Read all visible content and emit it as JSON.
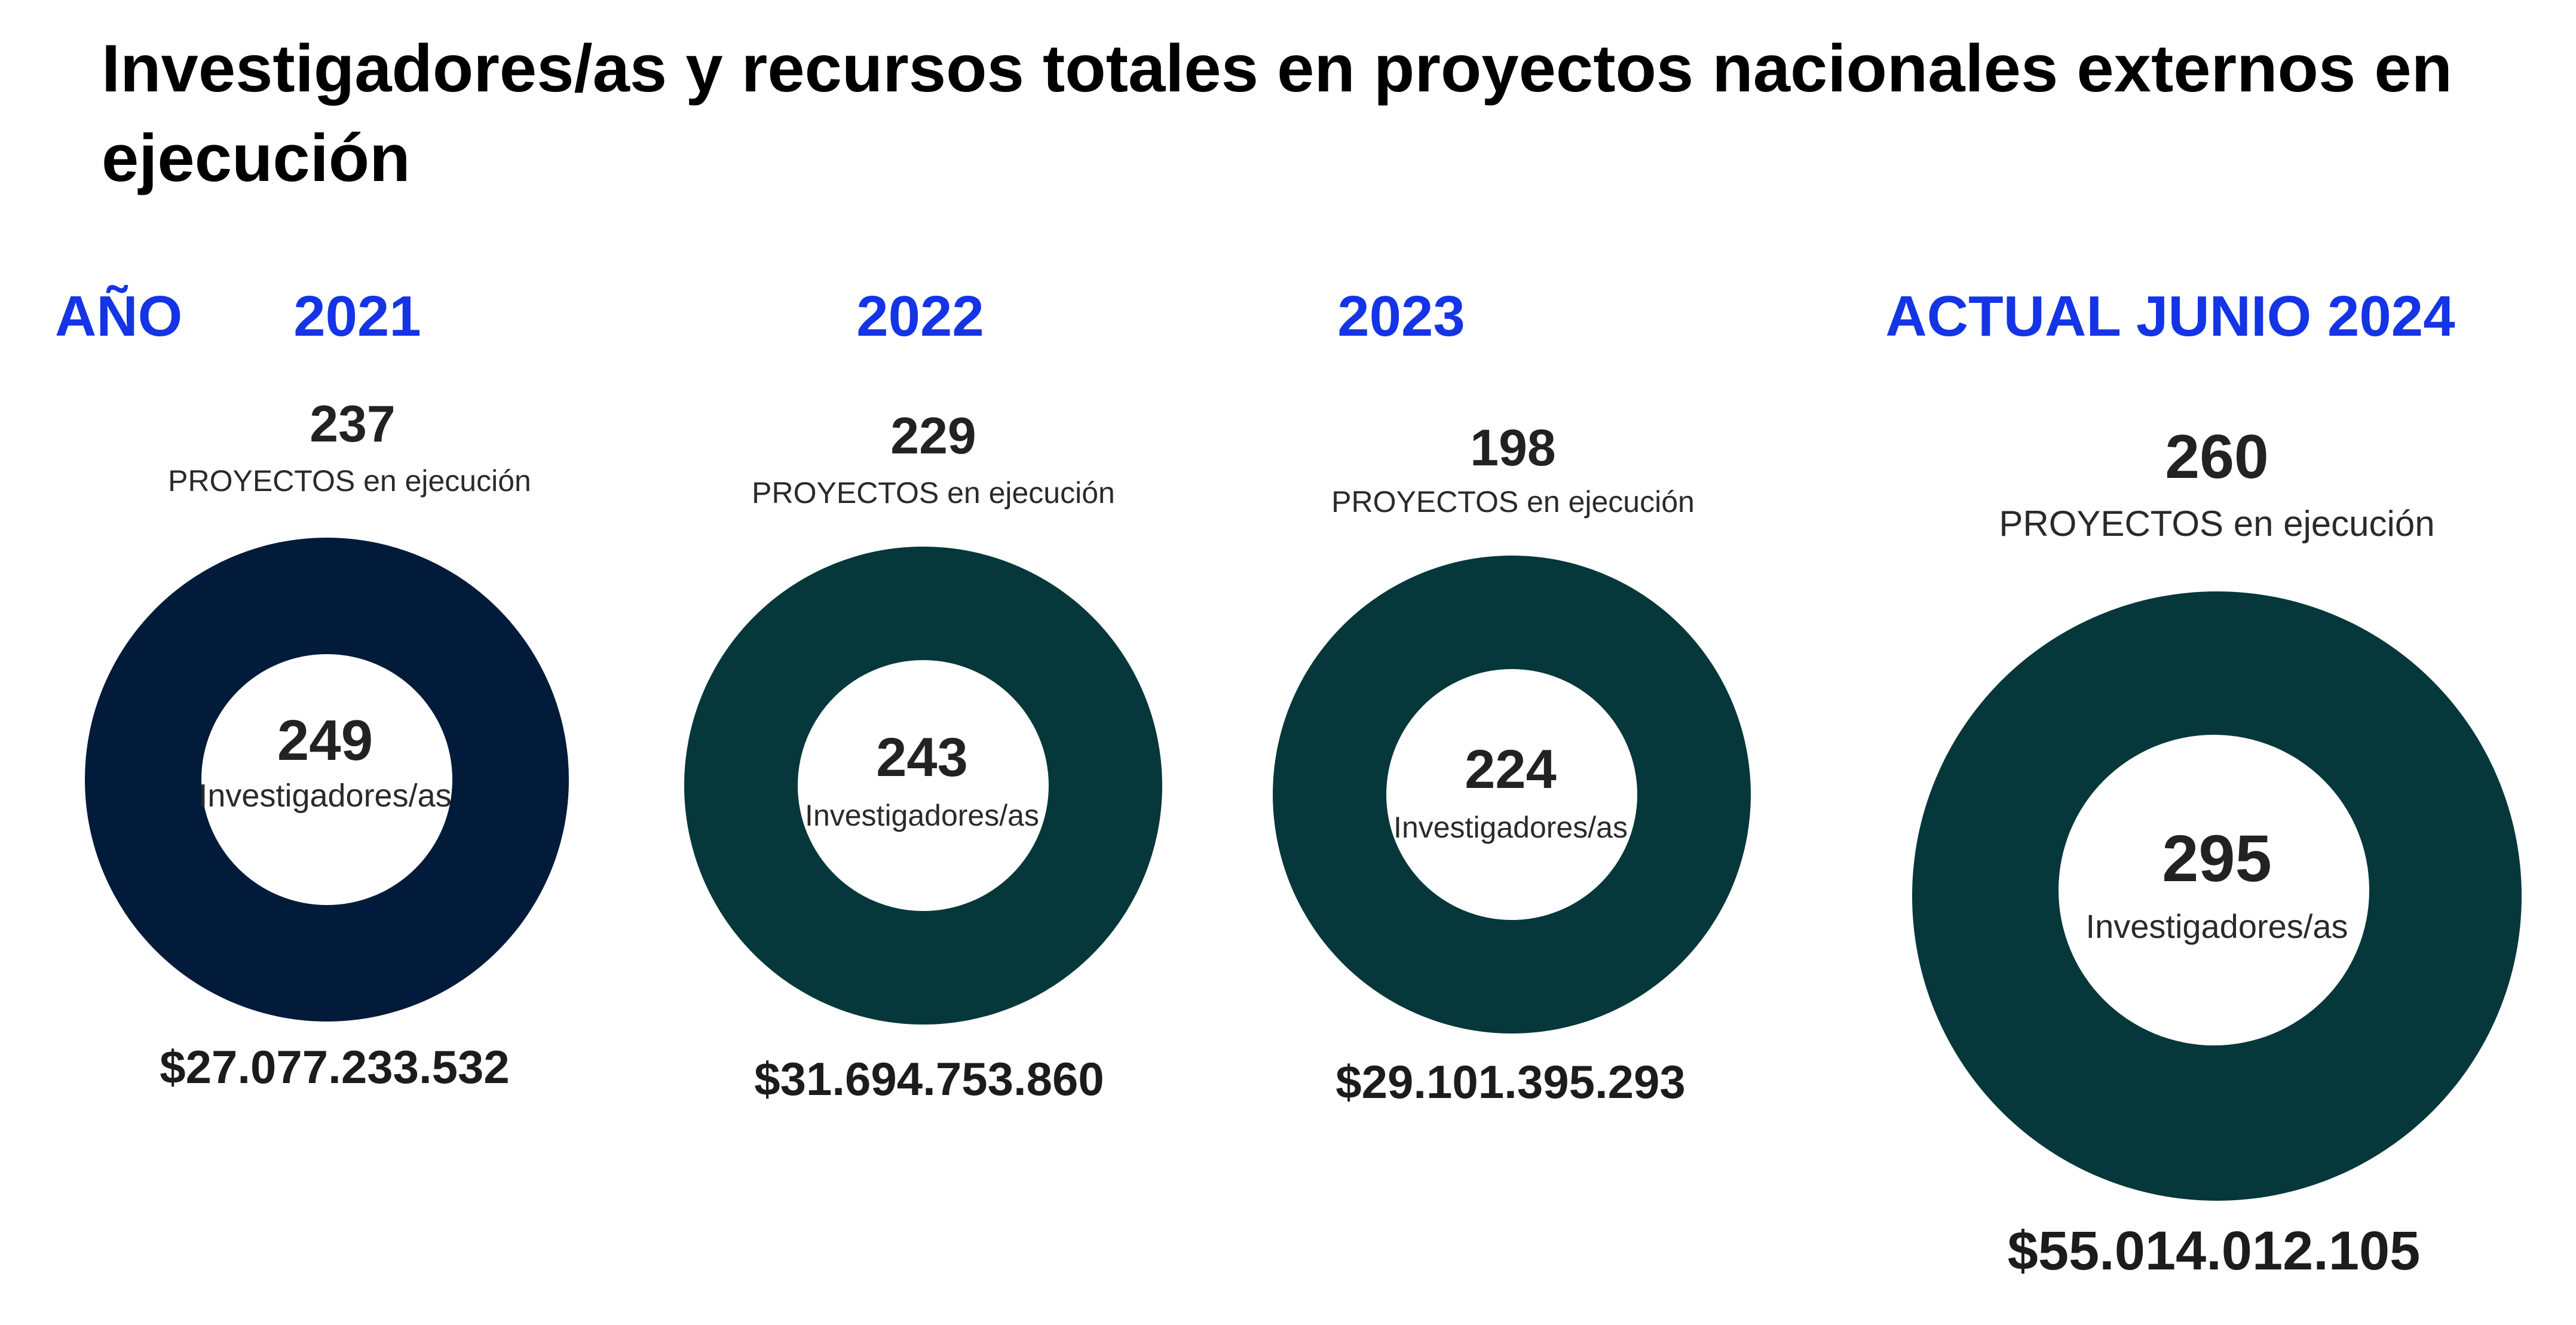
{
  "title": "Investigadores/as y recursos totales en proyectos nacionales externos en ejecución",
  "year_header_label": "AÑO",
  "ring_colors": {
    "2021": "#031b3a",
    "default": "#06373b"
  },
  "columns": [
    {
      "year": "2021",
      "projects": "237",
      "projects_label": "PROYECTOS en ejecución",
      "researchers": "249",
      "researchers_label": "Investigadores/as",
      "amount": "$27.077.233.532"
    },
    {
      "year": "2022",
      "projects": "229",
      "projects_label": "PROYECTOS en ejecución",
      "researchers": "243",
      "researchers_label": "Investigadores/as",
      "amount": "$31.694.753.860"
    },
    {
      "year": "2023",
      "projects": "198",
      "projects_label": "PROYECTOS en ejecución",
      "researchers": "224",
      "researchers_label": "Investigadores/as",
      "amount": "$29.101.395.293"
    },
    {
      "year": "ACTUAL JUNIO 2024",
      "projects": "260",
      "projects_label": "PROYECTOS en ejecución",
      "researchers": "295",
      "researchers_label": "Investigadores/as",
      "amount": "$55.014.012.105"
    }
  ]
}
